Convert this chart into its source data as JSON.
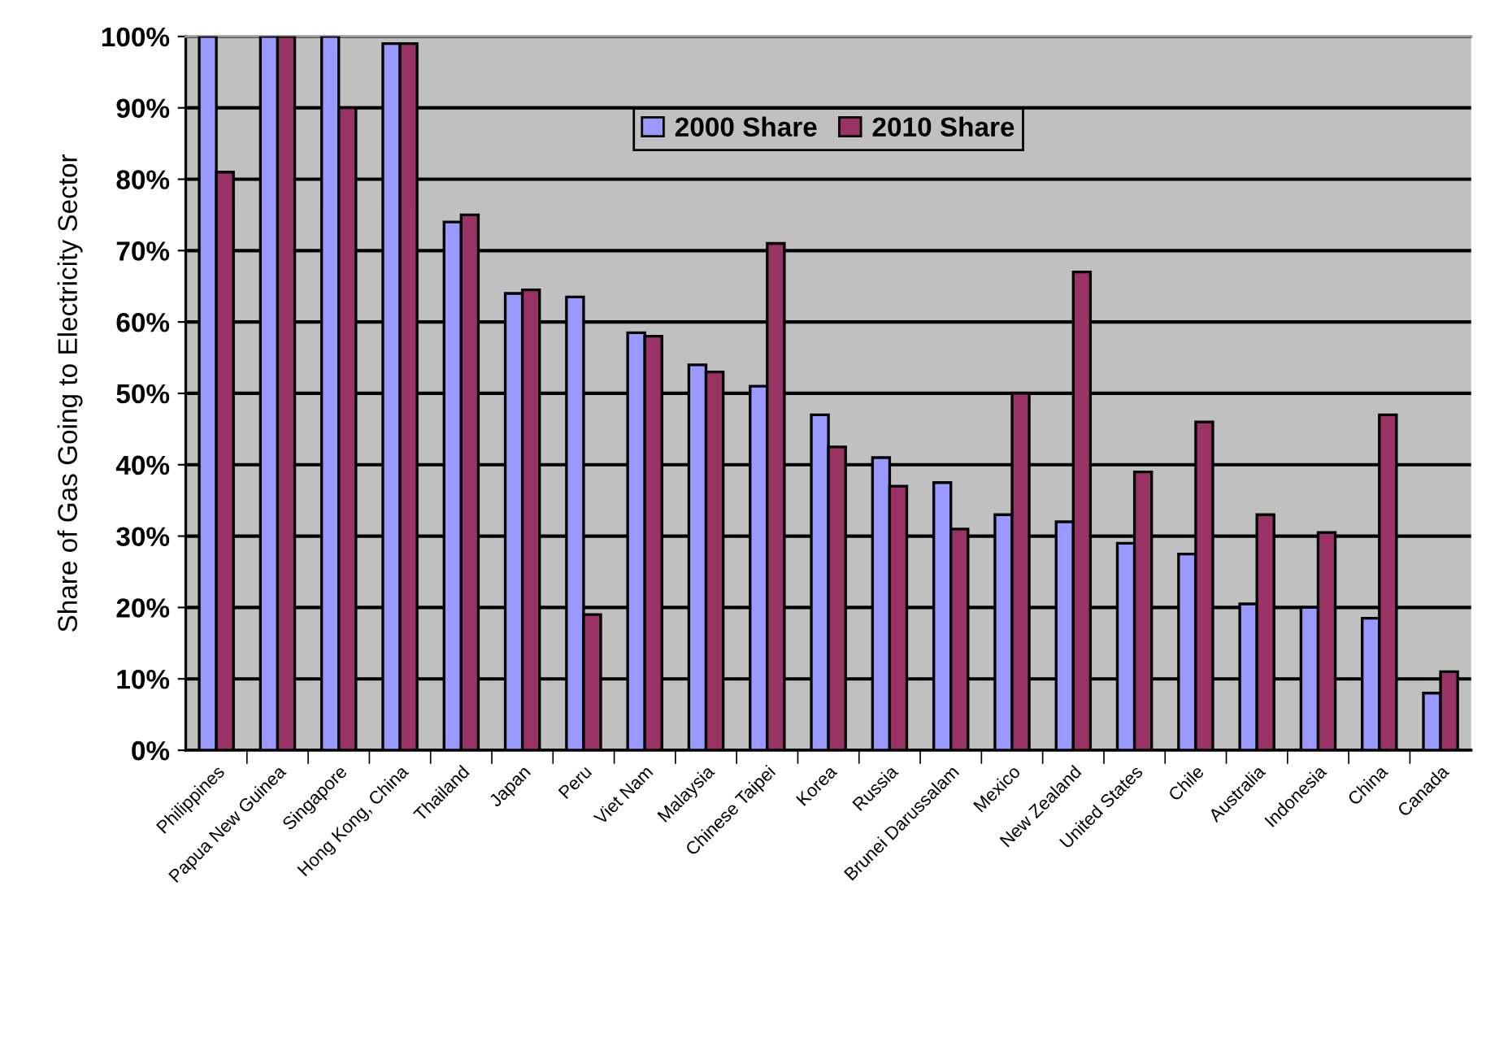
{
  "chart_data": {
    "type": "bar",
    "ylabel": "Share of Gas Going to Electricity Sector",
    "categories": [
      "Philippines",
      "Papua New Guinea",
      "Singapore",
      "Hong Kong, China",
      "Thailand",
      "Japan",
      "Peru",
      "Viet Nam",
      "Malaysia",
      "Chinese Taipei",
      "Korea",
      "Russia",
      "Brunei Darussalam",
      "Mexico",
      "New Zealand",
      "United States",
      "Chile",
      "Australia",
      "Indonesia",
      "China",
      "Canada"
    ],
    "series": [
      {
        "name": "2000 Share",
        "color": "#9999ff",
        "values": [
          100,
          100,
          100,
          99,
          74,
          64,
          63.5,
          58.5,
          54,
          51,
          47,
          41,
          37.5,
          33,
          32,
          29,
          27.5,
          20.5,
          20,
          18.5,
          8
        ]
      },
      {
        "name": "2010 Share",
        "color": "#993366",
        "values": [
          81,
          100,
          90,
          99,
          75,
          64.5,
          19,
          58,
          53,
          71,
          42.5,
          37,
          31,
          50,
          67,
          39,
          46,
          33,
          30.5,
          47,
          11
        ]
      }
    ],
    "ylim": [
      0,
      100
    ],
    "yticks": [
      {
        "value": 0,
        "label": "0%"
      },
      {
        "value": 10,
        "label": "10%"
      },
      {
        "value": 20,
        "label": "20%"
      },
      {
        "value": 30,
        "label": "30%"
      },
      {
        "value": 40,
        "label": "40%"
      },
      {
        "value": 50,
        "label": "50%"
      },
      {
        "value": 60,
        "label": "60%"
      },
      {
        "value": 70,
        "label": "70%"
      },
      {
        "value": 80,
        "label": "80%"
      },
      {
        "value": 90,
        "label": "90%"
      },
      {
        "value": 100,
        "label": "100%"
      }
    ],
    "grid": "y",
    "legend": "top"
  }
}
